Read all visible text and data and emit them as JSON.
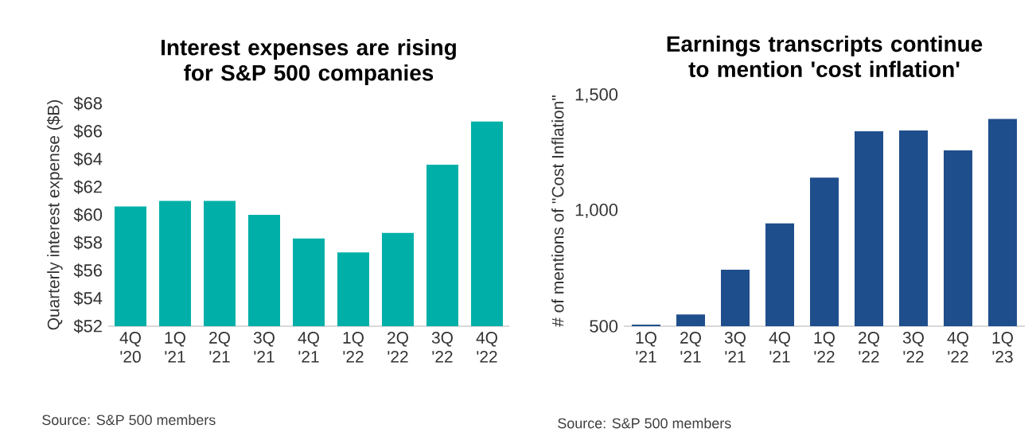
{
  "chart_data": [
    {
      "type": "bar",
      "title": "Interest expenses are rising for S&P 500 companies",
      "ylabel": "Quarterly interest expense ($B)",
      "categories": [
        "4Q '20",
        "1Q '21",
        "2Q '21",
        "3Q '21",
        "4Q '21",
        "1Q '22",
        "2Q '22",
        "3Q '22",
        "4Q '22"
      ],
      "values": [
        60.6,
        61.0,
        61.0,
        60.0,
        58.3,
        57.3,
        58.7,
        63.6,
        66.7
      ],
      "color": "#00b0a8",
      "ylim": [
        52,
        68
      ],
      "yticks": [
        {
          "value": 52,
          "label": "$52"
        },
        {
          "value": 54,
          "label": "$54"
        },
        {
          "value": 56,
          "label": "$56"
        },
        {
          "value": 58,
          "label": "$58"
        },
        {
          "value": 60,
          "label": "$60"
        },
        {
          "value": 62,
          "label": "$62"
        },
        {
          "value": 64,
          "label": "$64"
        },
        {
          "value": 66,
          "label": "$66"
        },
        {
          "value": 68,
          "label": "$68"
        }
      ],
      "annotations": [
        "Source: S&P 500 members"
      ]
    },
    {
      "type": "bar",
      "title": "Earnings transcripts continue to mention 'cost inflation'",
      "ylabel": "# of mentions of \"Cost Inflation\"",
      "categories": [
        "1Q '21",
        "2Q '21",
        "3Q '21",
        "4Q '21",
        "1Q '22",
        "2Q '22",
        "3Q '22",
        "4Q '22",
        "1Q '23"
      ],
      "values": [
        507,
        551,
        745,
        946,
        1144,
        1345,
        1348,
        1262,
        1398
      ],
      "color": "#1f4e8c",
      "ylim": [
        500,
        1500
      ],
      "yticks": [
        {
          "value": 500,
          "label": "500"
        },
        {
          "value": 1000,
          "label": "1,000"
        },
        {
          "value": 1500,
          "label": "1,500"
        }
      ],
      "annotations": [
        "Source: S&P 500 members"
      ]
    }
  ]
}
